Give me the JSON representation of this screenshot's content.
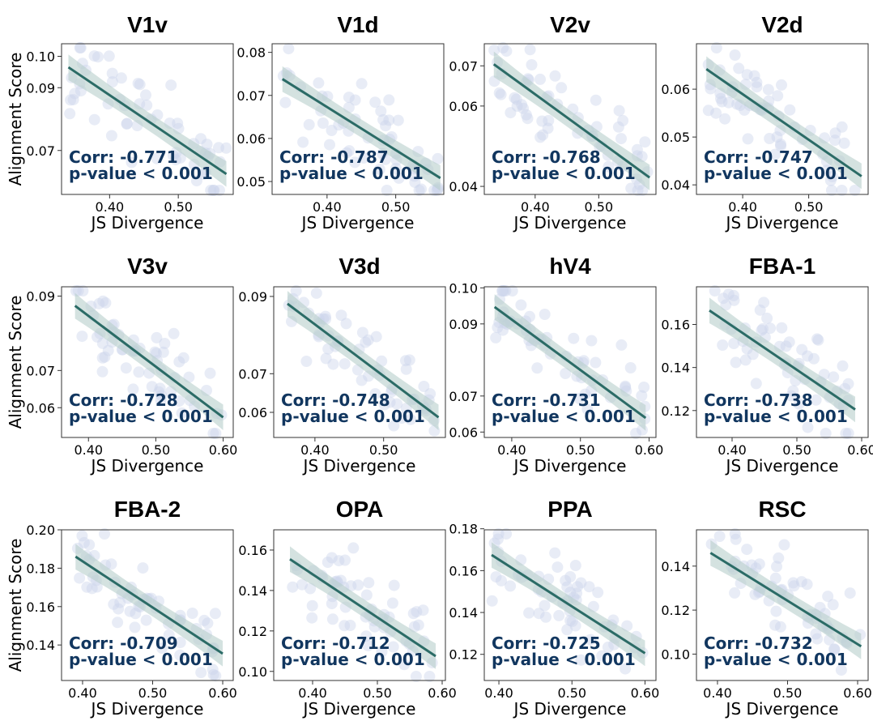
{
  "colors": {
    "line": "#2b6b66",
    "band": "#b7cfcc",
    "points": "#cdd5ea",
    "annotation": "#11365f"
  },
  "labels": {
    "xlabel": "JS Divergence",
    "ylabel": "Alignment Score"
  },
  "chart_data": [
    {
      "type": "scatter",
      "title": "V1v",
      "xlim": [
        0.33,
        0.58
      ],
      "ylim": [
        0.056,
        0.104
      ],
      "xticks": [
        "0.40",
        "0.50"
      ],
      "yticks": [
        "0.07",
        "0.09",
        "0.10"
      ],
      "corr": "Corr: -0.771",
      "pvalue": "p-value < 0.001",
      "fit": {
        "x": [
          0.34,
          0.57
        ],
        "y": [
          0.0965,
          0.0625
        ]
      }
    },
    {
      "type": "scatter",
      "title": "V1d",
      "xlim": [
        0.32,
        0.57
      ],
      "ylim": [
        0.047,
        0.082
      ],
      "xticks": [
        "0.40",
        "0.50"
      ],
      "yticks": [
        "0.05",
        "0.06",
        "0.07",
        "0.08"
      ],
      "corr": "Corr: -0.787",
      "pvalue": "p-value < 0.001",
      "fit": {
        "x": [
          0.335,
          0.565
        ],
        "y": [
          0.0738,
          0.0508
        ]
      }
    },
    {
      "type": "scatter",
      "title": "V2v",
      "xlim": [
        0.32,
        0.59
      ],
      "ylim": [
        0.038,
        0.0755
      ],
      "xticks": [
        "0.40",
        "0.50"
      ],
      "yticks": [
        "0.04",
        "0.06",
        "0.07"
      ],
      "corr": "Corr: -0.768",
      "pvalue": "p-value < 0.001",
      "fit": {
        "x": [
          0.335,
          0.58
        ],
        "y": [
          0.0704,
          0.0422
        ]
      }
    },
    {
      "type": "scatter",
      "title": "V2d",
      "xlim": [
        0.33,
        0.59
      ],
      "ylim": [
        0.038,
        0.0695
      ],
      "xticks": [
        "0.40",
        "0.50"
      ],
      "yticks": [
        "0.04",
        "0.05",
        "0.06"
      ],
      "corr": "Corr: -0.747",
      "pvalue": "p-value < 0.001",
      "fit": {
        "x": [
          0.345,
          0.58
        ],
        "y": [
          0.0642,
          0.0418
        ]
      }
    },
    {
      "type": "scatter",
      "title": "V3v",
      "xlim": [
        0.36,
        0.615
      ],
      "ylim": [
        0.052,
        0.0925
      ],
      "xticks": [
        "0.40",
        "0.50",
        "0.60"
      ],
      "yticks": [
        "0.06",
        "0.07",
        "0.09"
      ],
      "corr": "Corr: -0.728",
      "pvalue": "p-value < 0.001",
      "fit": {
        "x": [
          0.38,
          0.6
        ],
        "y": [
          0.0874,
          0.0574
        ]
      }
    },
    {
      "type": "scatter",
      "title": "V3d",
      "xlim": [
        0.34,
        0.59
      ],
      "ylim": [
        0.0535,
        0.0925
      ],
      "xticks": [
        "0.40",
        "0.50"
      ],
      "yticks": [
        "0.06",
        "0.07",
        "0.09"
      ],
      "corr": "Corr: -0.748",
      "pvalue": "p-value < 0.001",
      "fit": {
        "x": [
          0.36,
          0.58
        ],
        "y": [
          0.0881,
          0.0587
        ]
      }
    },
    {
      "type": "scatter",
      "title": "hV4",
      "xlim": [
        0.36,
        0.61
      ],
      "ylim": [
        0.0585,
        0.1003
      ],
      "xticks": [
        "0.40",
        "0.50",
        "0.60"
      ],
      "yticks": [
        "0.06",
        "0.07",
        "0.09",
        "0.10"
      ],
      "corr": "Corr: -0.731",
      "pvalue": "p-value < 0.001",
      "fit": {
        "x": [
          0.375,
          0.595
        ],
        "y": [
          0.0947,
          0.0639
        ]
      }
    },
    {
      "type": "scatter",
      "title": "FBA-1",
      "xlim": [
        0.345,
        0.61
      ],
      "ylim": [
        0.1075,
        0.1775
      ],
      "xticks": [
        "0.40",
        "0.50",
        "0.60"
      ],
      "yticks": [
        "0.12",
        "0.14",
        "0.16"
      ],
      "corr": "Corr: -0.738",
      "pvalue": "p-value < 0.001",
      "fit": {
        "x": [
          0.365,
          0.59
        ],
        "y": [
          0.1665,
          0.1205
        ]
      }
    },
    {
      "type": "scatter",
      "title": "FBA-2",
      "xlim": [
        0.37,
        0.615
      ],
      "ylim": [
        0.1215,
        0.2
      ],
      "xticks": [
        "0.40",
        "0.50",
        "0.60"
      ],
      "yticks": [
        "0.14",
        "0.16",
        "0.18",
        "0.20"
      ],
      "corr": "Corr: -0.709",
      "pvalue": "p-value < 0.001",
      "fit": {
        "x": [
          0.39,
          0.6
        ],
        "y": [
          0.186,
          0.1355
        ]
      }
    },
    {
      "type": "scatter",
      "title": "OPA",
      "xlim": [
        0.34,
        0.605
      ],
      "ylim": [
        0.0955,
        0.17
      ],
      "xticks": [
        "0.40",
        "0.50",
        "0.60"
      ],
      "yticks": [
        "0.10",
        "0.12",
        "0.14",
        "0.16"
      ],
      "corr": "Corr: -0.712",
      "pvalue": "p-value < 0.001",
      "fit": {
        "x": [
          0.365,
          0.59
        ],
        "y": [
          0.1555,
          0.1075
        ]
      }
    },
    {
      "type": "scatter",
      "title": "PPA",
      "xlim": [
        0.38,
        0.615
      ],
      "ylim": [
        0.1075,
        0.1795
      ],
      "xticks": [
        "0.40",
        "0.50",
        "0.60"
      ],
      "yticks": [
        "0.12",
        "0.14",
        "0.16",
        "0.18"
      ],
      "corr": "Corr: -0.725",
      "pvalue": "p-value < 0.001",
      "fit": {
        "x": [
          0.39,
          0.6
        ],
        "y": [
          0.1675,
          0.1205
        ]
      }
    },
    {
      "type": "scatter",
      "title": "RSC",
      "xlim": [
        0.37,
        0.615
      ],
      "ylim": [
        0.088,
        0.1565
      ],
      "xticks": [
        "0.40",
        "0.50",
        "0.60"
      ],
      "yticks": [
        "0.10",
        "0.12",
        "0.14"
      ],
      "corr": "Corr: -0.732",
      "pvalue": "p-value < 0.001",
      "fit": {
        "x": [
          0.39,
          0.605
        ],
        "y": [
          0.146,
          0.1035
        ]
      }
    }
  ]
}
